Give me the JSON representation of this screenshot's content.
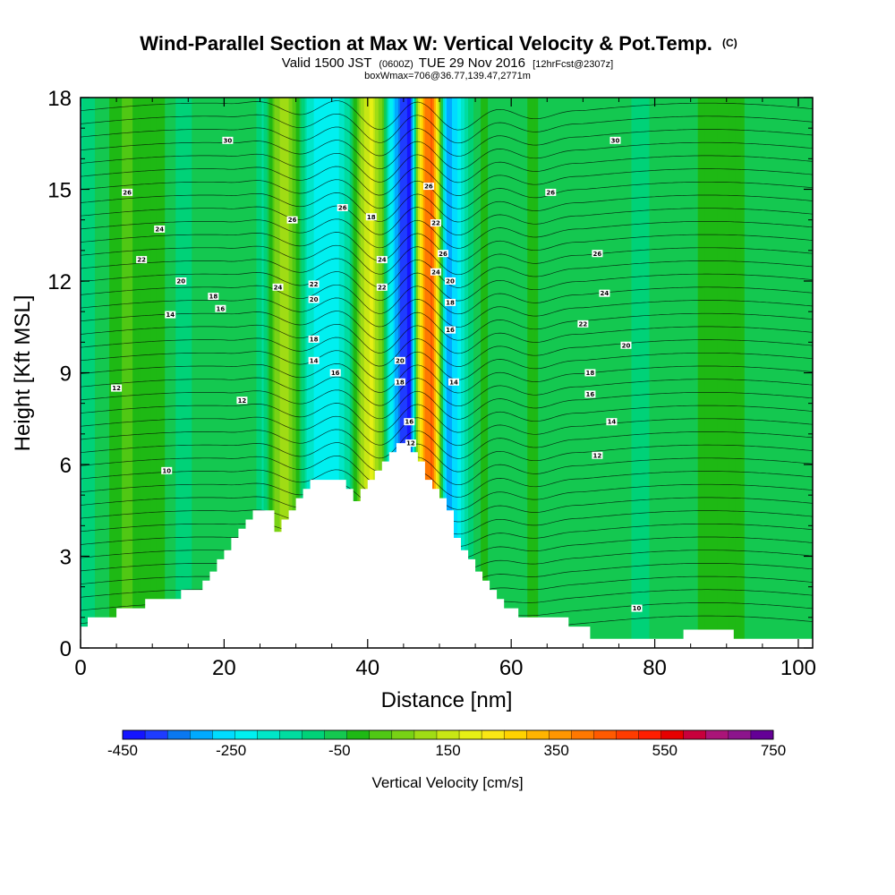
{
  "chart_data": {
    "type": "heatmap",
    "title": "Wind-Parallel Section at Max W: Vertical Velocity & Pot.Temp.",
    "title_units": "(C)",
    "subtitle_prefix": "Valid 1500 JST",
    "subtitle_utc": "(0600Z)",
    "subtitle_date": "TUE 29 Nov 2016",
    "subtitle_fcst": "[12hrFcst@2307z]",
    "subtitle_box": "boxWmax=706@36.77,139.47,2771m",
    "xlabel": "Distance [nm]",
    "ylabel": "Height [Kft MSL]",
    "xlim": [
      0,
      102
    ],
    "ylim": [
      0,
      18
    ],
    "x_ticks": [
      0,
      20,
      40,
      60,
      80,
      100
    ],
    "y_ticks": [
      0,
      3,
      6,
      9,
      12,
      15,
      18
    ],
    "colorbar": {
      "label": "Vertical Velocity [cm/s]",
      "min": -450,
      "max": 750,
      "step": 50,
      "tick_labels": [
        "-450",
        "-250",
        "-50",
        "150",
        "350",
        "550",
        "750"
      ],
      "colors": [
        "#1414ff",
        "#1e3cff",
        "#0a78f0",
        "#00aaff",
        "#00dcff",
        "#00f0f0",
        "#00e6c8",
        "#00dca0",
        "#00d278",
        "#14c850",
        "#1eb914",
        "#50c814",
        "#78d214",
        "#a0dc14",
        "#c8e614",
        "#e6f014",
        "#fae614",
        "#ffd200",
        "#ffb400",
        "#ff9600",
        "#ff7800",
        "#ff5a00",
        "#ff3c00",
        "#ff1e00",
        "#e60000",
        "#c8003c",
        "#aa1478",
        "#8c148c",
        "#640096"
      ]
    },
    "w_columns": [
      {
        "x": 0,
        "w": -60
      },
      {
        "x": 6,
        "w": 110
      },
      {
        "x": 11,
        "w": 70
      },
      {
        "x": 14,
        "w": -20
      },
      {
        "x": 17,
        "w": 20
      },
      {
        "x": 21,
        "w": 50
      },
      {
        "x": 24,
        "w": 40
      },
      {
        "x": 25.5,
        "w": -60
      },
      {
        "x": 27,
        "w": 150
      },
      {
        "x": 28.5,
        "w": 250
      },
      {
        "x": 30,
        "w": 100
      },
      {
        "x": 31.5,
        "w": -100
      },
      {
        "x": 33.5,
        "w": -200
      },
      {
        "x": 36,
        "w": -150
      },
      {
        "x": 37.5,
        "w": -50
      },
      {
        "x": 39,
        "w": 200
      },
      {
        "x": 40.5,
        "w": 320
      },
      {
        "x": 42,
        "w": 150
      },
      {
        "x": 43,
        "w": -150
      },
      {
        "x": 44.5,
        "w": -350
      },
      {
        "x": 46,
        "w": -430
      },
      {
        "x": 47,
        "w": 250
      },
      {
        "x": 48,
        "w": 550
      },
      {
        "x": 49,
        "w": 620
      },
      {
        "x": 50,
        "w": 200
      },
      {
        "x": 51,
        "w": -300
      },
      {
        "x": 52.5,
        "w": -200
      },
      {
        "x": 54,
        "w": -50
      },
      {
        "x": 56,
        "w": 70
      },
      {
        "x": 59,
        "w": 0
      },
      {
        "x": 63,
        "w": 60
      },
      {
        "x": 67,
        "w": 0
      },
      {
        "x": 72,
        "w": 40
      },
      {
        "x": 78,
        "w": -10
      },
      {
        "x": 84,
        "w": 40
      },
      {
        "x": 90,
        "w": 70
      },
      {
        "x": 96,
        "w": 20
      },
      {
        "x": 102,
        "w": 30
      }
    ],
    "terrain": [
      [
        0,
        0.7
      ],
      [
        1,
        0.7
      ],
      [
        1,
        1
      ],
      [
        5,
        1
      ],
      [
        5,
        1.3
      ],
      [
        9,
        1.3
      ],
      [
        9,
        1.6
      ],
      [
        14,
        1.6
      ],
      [
        14,
        1.9
      ],
      [
        17,
        1.9
      ],
      [
        17,
        2.2
      ],
      [
        18,
        2.2
      ],
      [
        18,
        2.5
      ],
      [
        19,
        2.5
      ],
      [
        19,
        2.9
      ],
      [
        20,
        2.9
      ],
      [
        20,
        3.2
      ],
      [
        21,
        3.2
      ],
      [
        21,
        3.6
      ],
      [
        22,
        3.6
      ],
      [
        22,
        3.9
      ],
      [
        23,
        3.9
      ],
      [
        23,
        4.2
      ],
      [
        24,
        4.2
      ],
      [
        24,
        4.5
      ],
      [
        27,
        4.5
      ],
      [
        27,
        3.8
      ],
      [
        28,
        3.8
      ],
      [
        28,
        4.2
      ],
      [
        29,
        4.2
      ],
      [
        29,
        4.5
      ],
      [
        30,
        4.5
      ],
      [
        30,
        4.9
      ],
      [
        31,
        4.9
      ],
      [
        31,
        5.2
      ],
      [
        32,
        5.2
      ],
      [
        32,
        5.5
      ],
      [
        37,
        5.5
      ],
      [
        37,
        5.2
      ],
      [
        38,
        5.2
      ],
      [
        38,
        4.8
      ],
      [
        39,
        4.8
      ],
      [
        39,
        5.2
      ],
      [
        40,
        5.2
      ],
      [
        40,
        5.5
      ],
      [
        41,
        5.5
      ],
      [
        41,
        5.8
      ],
      [
        42,
        5.8
      ],
      [
        42,
        6.1
      ],
      [
        43,
        6.1
      ],
      [
        43,
        6.4
      ],
      [
        44,
        6.4
      ],
      [
        44,
        6.7
      ],
      [
        46,
        6.7
      ],
      [
        46,
        6.4
      ],
      [
        47,
        6.4
      ],
      [
        47,
        6.1
      ],
      [
        48,
        6.1
      ],
      [
        48,
        5.5
      ],
      [
        49,
        5.5
      ],
      [
        49,
        5.2
      ],
      [
        50,
        5.2
      ],
      [
        50,
        4.9
      ],
      [
        51,
        4.9
      ],
      [
        51,
        4.5
      ],
      [
        52,
        4.5
      ],
      [
        52,
        3.6
      ],
      [
        53,
        3.6
      ],
      [
        53,
        3.2
      ],
      [
        54,
        3.2
      ],
      [
        54,
        2.9
      ],
      [
        55,
        2.9
      ],
      [
        55,
        2.5
      ],
      [
        56,
        2.5
      ],
      [
        56,
        2.2
      ],
      [
        57,
        2.2
      ],
      [
        57,
        1.9
      ],
      [
        58,
        1.9
      ],
      [
        58,
        1.6
      ],
      [
        59,
        1.6
      ],
      [
        59,
        1.3
      ],
      [
        61,
        1.3
      ],
      [
        61,
        1
      ],
      [
        68,
        1
      ],
      [
        68,
        0.7
      ],
      [
        71,
        0.7
      ],
      [
        71,
        0.3
      ],
      [
        84,
        0.3
      ],
      [
        84,
        0.6
      ],
      [
        91,
        0.6
      ],
      [
        91,
        0.3
      ],
      [
        102,
        0.3
      ]
    ],
    "contour_labels": [
      {
        "x": 20.5,
        "y": 16.6,
        "text": "30"
      },
      {
        "x": 6.5,
        "y": 14.9,
        "text": "26"
      },
      {
        "x": 11,
        "y": 13.7,
        "text": "24"
      },
      {
        "x": 8.5,
        "y": 12.7,
        "text": "22"
      },
      {
        "x": 14,
        "y": 12.0,
        "text": "20"
      },
      {
        "x": 18.5,
        "y": 11.5,
        "text": "18"
      },
      {
        "x": 19.5,
        "y": 11.1,
        "text": "16"
      },
      {
        "x": 12.5,
        "y": 10.9,
        "text": "14"
      },
      {
        "x": 5,
        "y": 8.5,
        "text": "12"
      },
      {
        "x": 22.5,
        "y": 8.1,
        "text": "12"
      },
      {
        "x": 12,
        "y": 5.8,
        "text": "10"
      },
      {
        "x": 29.5,
        "y": 14.0,
        "text": "26"
      },
      {
        "x": 27.5,
        "y": 11.8,
        "text": "24"
      },
      {
        "x": 32.5,
        "y": 11.9,
        "text": "22"
      },
      {
        "x": 32.5,
        "y": 11.4,
        "text": "20"
      },
      {
        "x": 32.5,
        "y": 10.1,
        "text": "18"
      },
      {
        "x": 32.5,
        "y": 9.4,
        "text": "14"
      },
      {
        "x": 35.5,
        "y": 9.0,
        "text": "16"
      },
      {
        "x": 36.5,
        "y": 14.4,
        "text": "26"
      },
      {
        "x": 40.5,
        "y": 14.1,
        "text": "18"
      },
      {
        "x": 42,
        "y": 12.7,
        "text": "24"
      },
      {
        "x": 42,
        "y": 11.8,
        "text": "22"
      },
      {
        "x": 44.5,
        "y": 9.4,
        "text": "20"
      },
      {
        "x": 44.5,
        "y": 8.7,
        "text": "18"
      },
      {
        "x": 45.8,
        "y": 7.4,
        "text": "16"
      },
      {
        "x": 46,
        "y": 6.7,
        "text": "12"
      },
      {
        "x": 48.5,
        "y": 15.1,
        "text": "26"
      },
      {
        "x": 49.5,
        "y": 13.9,
        "text": "22"
      },
      {
        "x": 50.5,
        "y": 12.9,
        "text": "26"
      },
      {
        "x": 49.5,
        "y": 12.3,
        "text": "24"
      },
      {
        "x": 51.5,
        "y": 12.0,
        "text": "20"
      },
      {
        "x": 51.5,
        "y": 11.3,
        "text": "18"
      },
      {
        "x": 51.5,
        "y": 10.4,
        "text": "16"
      },
      {
        "x": 52,
        "y": 8.7,
        "text": "14"
      },
      {
        "x": 65.5,
        "y": 14.9,
        "text": "26"
      },
      {
        "x": 74.5,
        "y": 16.6,
        "text": "30"
      },
      {
        "x": 72,
        "y": 12.9,
        "text": "26"
      },
      {
        "x": 73,
        "y": 11.6,
        "text": "24"
      },
      {
        "x": 70,
        "y": 10.6,
        "text": "22"
      },
      {
        "x": 76,
        "y": 9.9,
        "text": "20"
      },
      {
        "x": 71,
        "y": 9.0,
        "text": "18"
      },
      {
        "x": 71,
        "y": 8.3,
        "text": "16"
      },
      {
        "x": 74,
        "y": 7.4,
        "text": "14"
      },
      {
        "x": 72,
        "y": 6.3,
        "text": "12"
      },
      {
        "x": 77.5,
        "y": 1.3,
        "text": "10"
      }
    ]
  }
}
